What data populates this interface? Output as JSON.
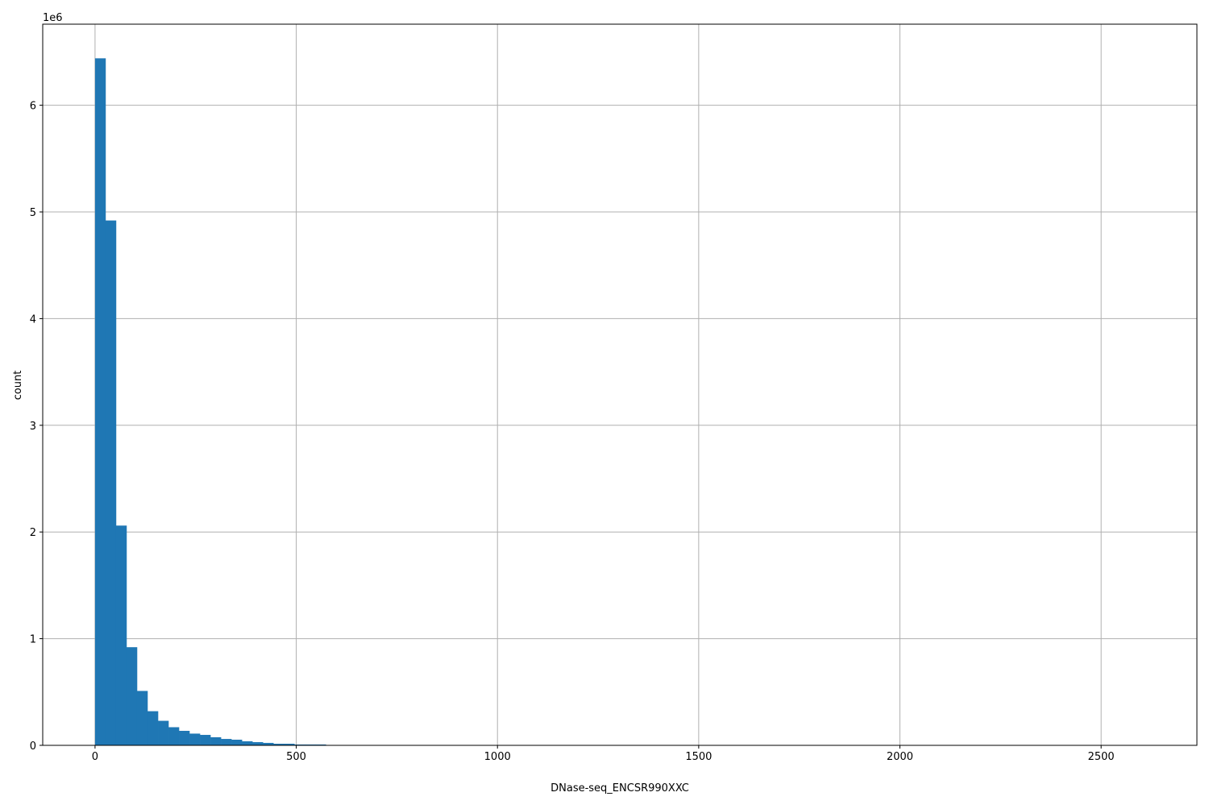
{
  "chart_data": {
    "type": "bar",
    "subtype": "histogram",
    "xlabel": "DNase-seq_ENCSR990XXC",
    "ylabel": "count",
    "y_offset_label": "1e6",
    "x_range": [
      0,
      2607
    ],
    "n_bins": 100,
    "xlim": [
      -130,
      2738
    ],
    "ylim": [
      0,
      6760000
    ],
    "xticks": [
      0,
      500,
      1000,
      1500,
      2000,
      2500
    ],
    "yticks": [
      0,
      1,
      2,
      3,
      4,
      5,
      6
    ],
    "grid": true,
    "color": "#1f77b4",
    "counts": [
      6440000,
      4920000,
      2060000,
      920000,
      510000,
      320000,
      230000,
      170000,
      136000,
      110000,
      98000,
      76000,
      60000,
      53000,
      38000,
      30000,
      23000,
      15000,
      15000,
      8000,
      8000,
      8000,
      0,
      0,
      0,
      0,
      0,
      0,
      0,
      0,
      0,
      0,
      0,
      0,
      0,
      0,
      0,
      0,
      0,
      0,
      0,
      0,
      0,
      0,
      0,
      0,
      0,
      0,
      0,
      0,
      0,
      0,
      0,
      0,
      0,
      0,
      0,
      0,
      0,
      0,
      0,
      0,
      0,
      0,
      0,
      0,
      0,
      0,
      0,
      0,
      0,
      0,
      0,
      0,
      0,
      0,
      0,
      0,
      0,
      0,
      0,
      0,
      0,
      0,
      0,
      0,
      0,
      0,
      0,
      0,
      0,
      0,
      0,
      0,
      0,
      0,
      0,
      0,
      0,
      0
    ]
  }
}
